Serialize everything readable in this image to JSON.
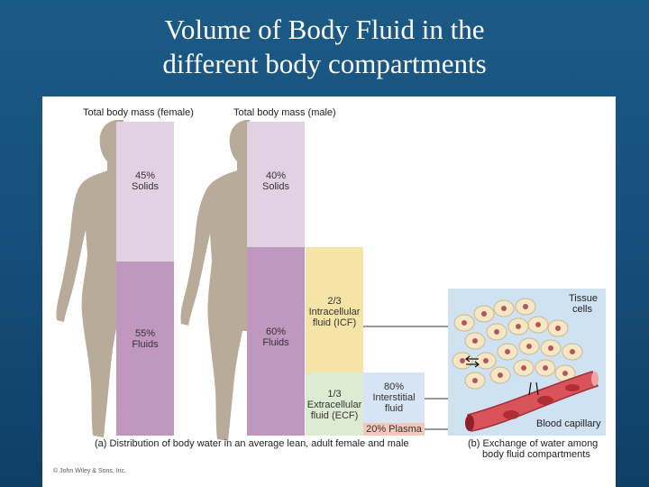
{
  "title_lines": [
    "Volume of Body Fluid in the",
    "different body compartments"
  ],
  "female": {
    "label": "Total body mass (female)",
    "solids_pct": "45%",
    "solids_label": "Solids",
    "fluids_pct": "55%",
    "fluids_label": "Fluids"
  },
  "male": {
    "label": "Total body mass (male)",
    "solids_pct": "40%",
    "solids_label": "Solids",
    "fluids_pct": "60%",
    "fluids_label": "Fluids"
  },
  "icf": {
    "fraction": "2/3",
    "line1": "Intracellular",
    "line2": "fluid (ICF)"
  },
  "ecf": {
    "fraction": "1/3",
    "line1": "Extracellular",
    "line2": "fluid (ECF)"
  },
  "interstitial": {
    "pct": "80%",
    "line1": "Interstitial",
    "line2": "fluid"
  },
  "plasma": {
    "label": "20% Plasma"
  },
  "tissue_cells_label": [
    "Tissue",
    "cells"
  ],
  "blood_capillary_label": "Blood capillary",
  "caption_a": "(a) Distribution of body water in an average lean, adult female and male",
  "caption_b": [
    "(b) Exchange of water among",
    "body fluid compartments"
  ],
  "copyright": "© John Wiley & Sons, Inc.",
  "colors": {
    "background": "#16507c",
    "solids": "#e2d1e2",
    "fluids": "#bf97bf",
    "icf": "#f6e3a6",
    "ecf": "#dcebd2",
    "interstitial": "#d6e4f3",
    "plasma": "#f2c8b8",
    "silhouette": "#b8ab99"
  }
}
